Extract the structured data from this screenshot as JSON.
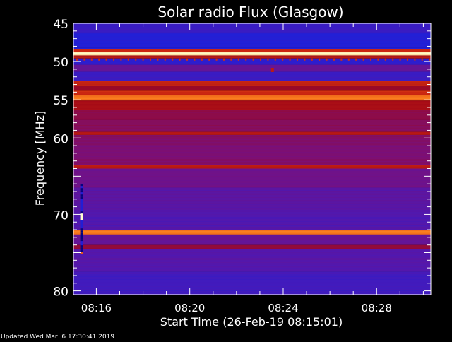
{
  "chart_data": {
    "type": "heatmap",
    "title": "Solar radio Flux (Glasgow)",
    "xlabel": "Start Time (26-Feb-19 08:15:01)",
    "ylabel": "Frequency [MHz]",
    "footer": "Updated Wed Mar  6 17:30:41 2019",
    "x_axis": {
      "range_minutes_after_start": [
        0,
        15.3
      ],
      "tick_labels": [
        "08:16",
        "08:20",
        "08:24",
        "08:28"
      ],
      "tick_minutes": [
        0.98,
        4.98,
        8.98,
        12.98
      ]
    },
    "y_axis": {
      "range_mhz": [
        45,
        80.5
      ],
      "inverted": true,
      "tick_labels": [
        "45",
        "50",
        "55",
        "60",
        "70",
        "80"
      ],
      "tick_values": [
        45,
        50,
        55,
        60,
        70,
        80
      ]
    },
    "colormap": [
      "#000070",
      "#2020d8",
      "#5018b0",
      "#7a107a",
      "#a00818",
      "#d02a10",
      "#ff8a20",
      "#ffffd0"
    ],
    "bands": [
      {
        "from": 45.0,
        "to": 46.2,
        "level": 0.22
      },
      {
        "from": 46.2,
        "to": 48.4,
        "level": 0.15
      },
      {
        "from": 48.4,
        "to": 48.75,
        "level": 0.7
      },
      {
        "from": 48.75,
        "to": 49.2,
        "level": 0.98
      },
      {
        "from": 49.2,
        "to": 49.6,
        "level": 0.62
      },
      {
        "from": 49.6,
        "to": 50.4,
        "level": 0.18
      },
      {
        "from": 50.4,
        "to": 51.3,
        "level": 0.36
      },
      {
        "from": 51.3,
        "to": 52.5,
        "level": 0.22
      },
      {
        "from": 52.5,
        "to": 53.2,
        "level": 0.68
      },
      {
        "from": 53.2,
        "to": 53.8,
        "level": 0.55
      },
      {
        "from": 53.8,
        "to": 54.4,
        "level": 0.7
      },
      {
        "from": 54.4,
        "to": 55.1,
        "level": 0.82
      },
      {
        "from": 55.1,
        "to": 56.3,
        "level": 0.6
      },
      {
        "from": 56.3,
        "to": 57.6,
        "level": 0.5
      },
      {
        "from": 57.6,
        "to": 59.2,
        "level": 0.47
      },
      {
        "from": 59.2,
        "to": 59.6,
        "level": 0.64
      },
      {
        "from": 59.6,
        "to": 61.0,
        "level": 0.46
      },
      {
        "from": 61.0,
        "to": 63.5,
        "level": 0.44
      },
      {
        "from": 63.5,
        "to": 64.0,
        "level": 0.66
      },
      {
        "from": 64.0,
        "to": 66.5,
        "level": 0.39
      },
      {
        "from": 66.5,
        "to": 69.5,
        "level": 0.32
      },
      {
        "from": 69.5,
        "to": 72.0,
        "level": 0.29
      },
      {
        "from": 72.0,
        "to": 72.6,
        "level": 0.82
      },
      {
        "from": 72.6,
        "to": 74.0,
        "level": 0.36
      },
      {
        "from": 74.0,
        "to": 74.5,
        "level": 0.52
      },
      {
        "from": 74.5,
        "to": 77.5,
        "level": 0.3
      },
      {
        "from": 77.5,
        "to": 80.5,
        "level": 0.24
      }
    ],
    "features": [
      {
        "kind": "burst-column",
        "minute": 0.35,
        "from_mhz": 66.0,
        "to_mhz": 75.0
      },
      {
        "kind": "spot",
        "minute": 8.52,
        "mhz": 51.1,
        "level": 0.65
      }
    ]
  }
}
